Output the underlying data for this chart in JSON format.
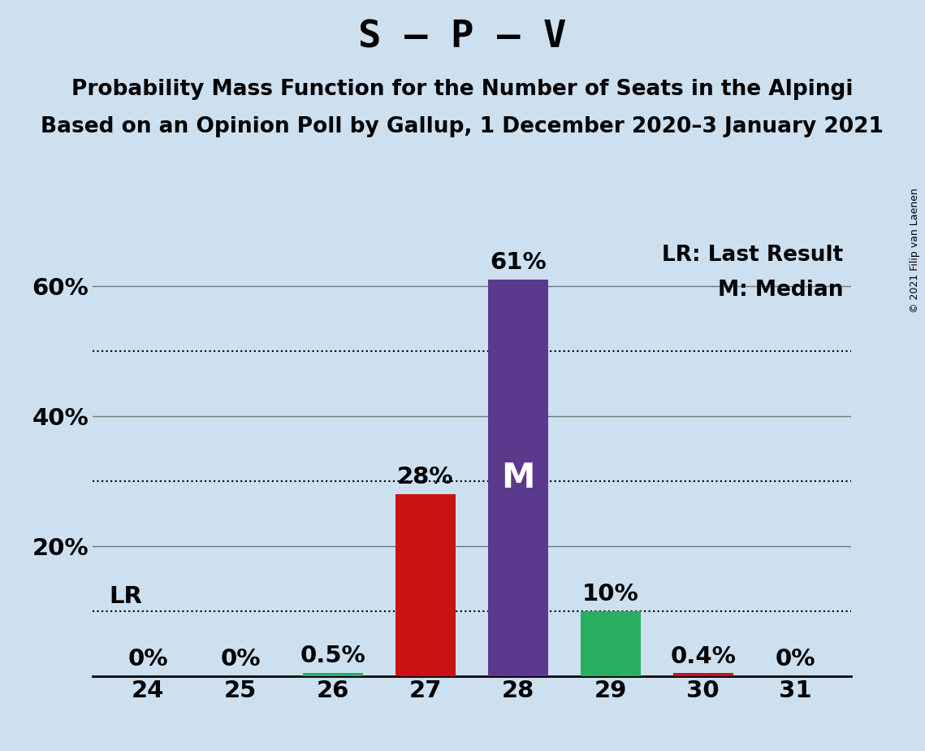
{
  "title": "S – P – V",
  "subtitle1": "Probability Mass Function for the Number of Seats in the Alpingi",
  "subtitle2": "Based on an Opinion Poll by Gallup, 1 December 2020–3 January 2021",
  "copyright": "© 2021 Filip van Laenen",
  "categories": [
    24,
    25,
    26,
    27,
    28,
    29,
    30,
    31
  ],
  "values": [
    0.0,
    0.0,
    0.5,
    28.0,
    61.0,
    10.0,
    0.4,
    0.0
  ],
  "bar_colors": [
    "#27ae60",
    "#27ae60",
    "#27ae60",
    "#cc1111",
    "#5b3a8e",
    "#27ae60",
    "#cc1111",
    "#27ae60"
  ],
  "labels": [
    "0%",
    "0%",
    "0.5%",
    "28%",
    "61%",
    "10%",
    "0.4%",
    "0%"
  ],
  "median_bar": 4,
  "lr_value": 10.0,
  "legend_lr": "LR: Last Result",
  "legend_m": "M: Median",
  "background_color": "#cce0f0",
  "ylim": [
    0,
    67
  ],
  "solid_grid": [
    20,
    40,
    60
  ],
  "dotted_grid": [
    10,
    30,
    50
  ],
  "ytick_positions": [
    20,
    40,
    60
  ],
  "ytick_labels": [
    "20%",
    "40%",
    "60%"
  ],
  "title_fontsize": 34,
  "subtitle_fontsize": 19,
  "label_fontsize": 21,
  "tick_fontsize": 21,
  "legend_fontsize": 19,
  "m_fontsize": 30
}
